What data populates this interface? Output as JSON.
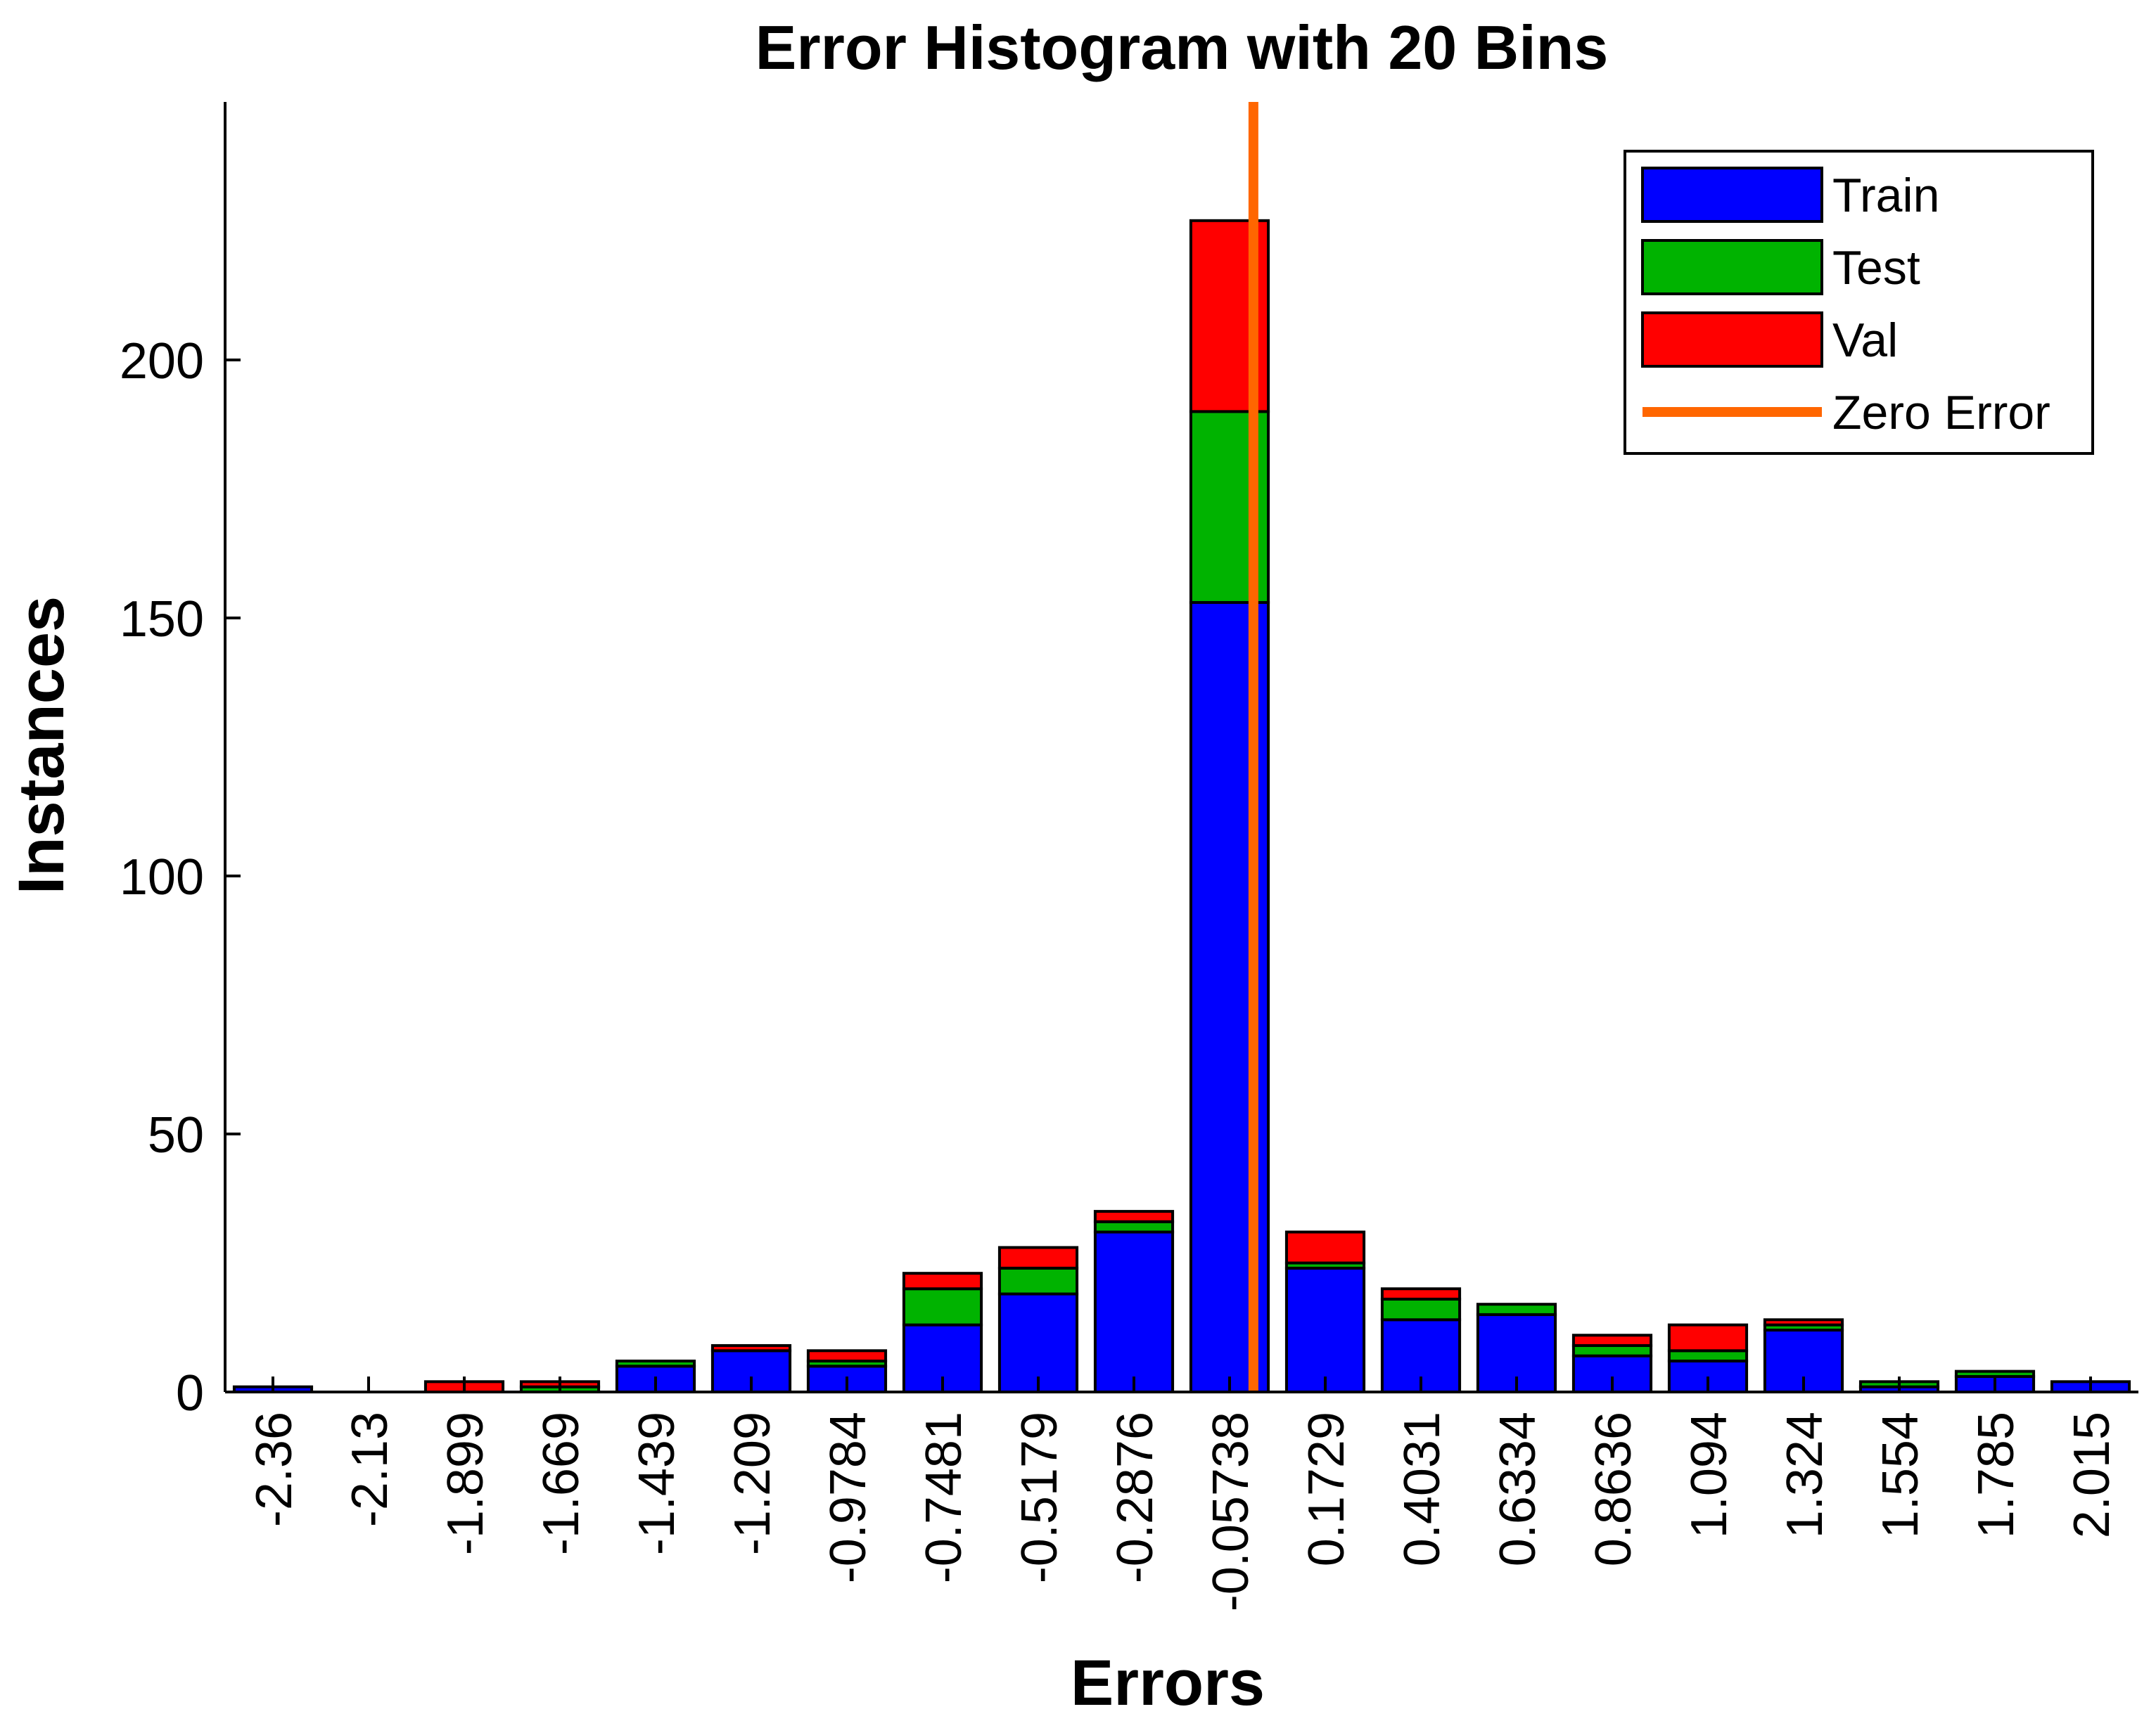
{
  "chart_data": {
    "type": "bar",
    "stacked": true,
    "title": "Error Histogram with 20 Bins",
    "xlabel": "Errors",
    "ylabel": "Instances",
    "ylim": [
      0,
      250
    ],
    "yticks": [
      0,
      50,
      100,
      150,
      200
    ],
    "categories": [
      "-2.36",
      "-2.13",
      "-1.899",
      "-1.669",
      "-1.439",
      "-1.209",
      "-0.9784",
      "-0.7481",
      "-0.5179",
      "-0.2876",
      "-0.05738",
      "0.1729",
      "0.4031",
      "0.6334",
      "0.8636",
      "1.094",
      "1.324",
      "1.554",
      "1.785",
      "2.015"
    ],
    "series": [
      {
        "name": "Train",
        "color": "#0000ff",
        "values": [
          1,
          0,
          0,
          0,
          5,
          8,
          5,
          13,
          19,
          31,
          153,
          24,
          14,
          15,
          7,
          6,
          12,
          1,
          3,
          2
        ]
      },
      {
        "name": "Test",
        "color": "#00b300",
        "values": [
          0,
          0,
          0,
          1,
          1,
          0,
          1,
          7,
          5,
          2,
          37,
          1,
          4,
          2,
          2,
          2,
          1,
          1,
          1,
          0
        ]
      },
      {
        "name": "Val",
        "color": "#ff0000",
        "values": [
          0,
          0,
          2,
          1,
          0,
          1,
          2,
          3,
          4,
          2,
          37,
          6,
          2,
          0,
          2,
          5,
          1,
          0,
          0,
          0
        ]
      }
    ],
    "zero_error": {
      "name": "Zero Error",
      "color": "#ff6600",
      "x": 0
    },
    "legend_position": "top-right",
    "grid": false
  }
}
